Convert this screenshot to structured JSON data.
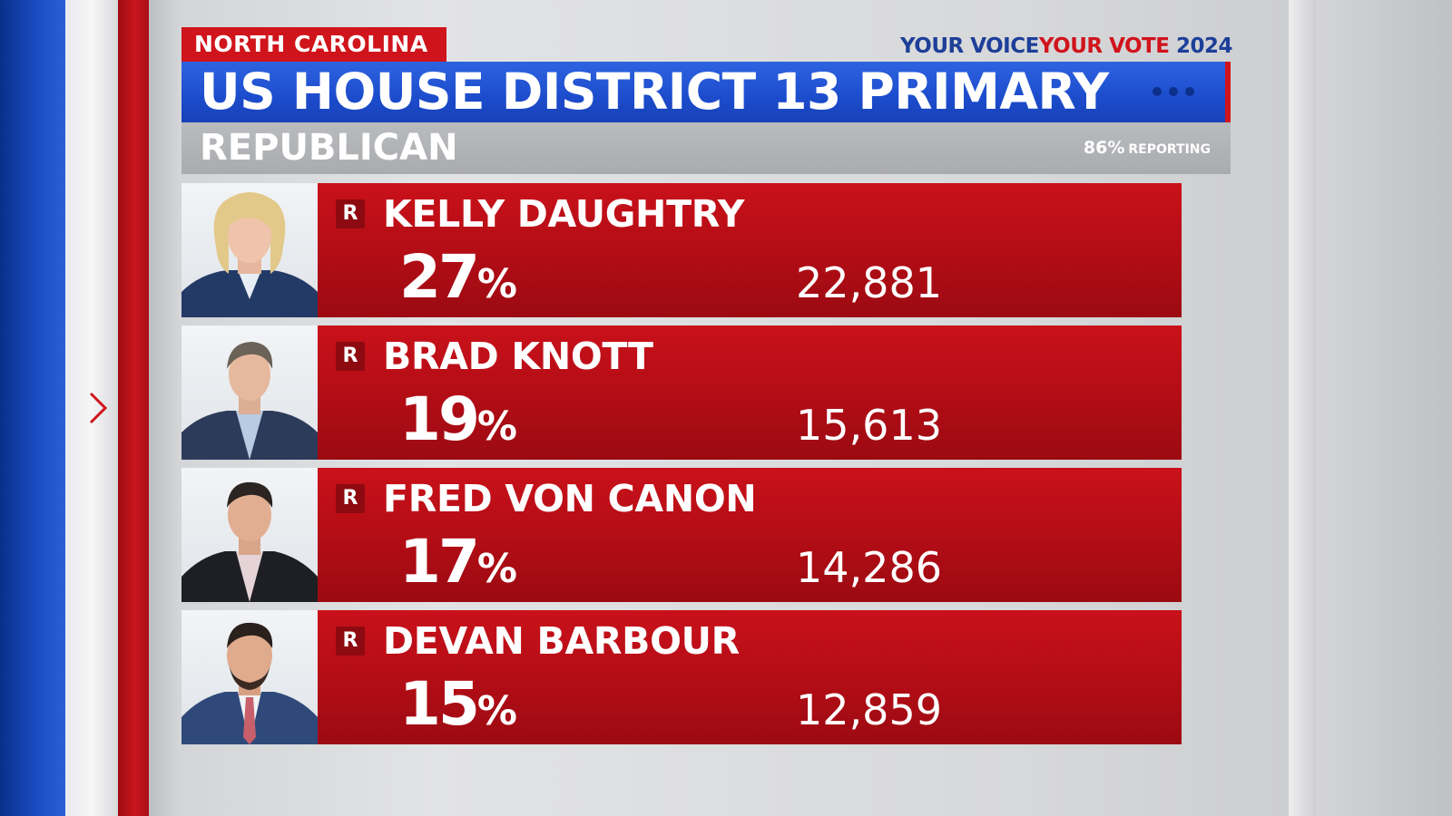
{
  "header": {
    "state": "NORTH CAROLINA",
    "brand_part1": "YOUR VOICE",
    "brand_part2": "YOUR VOTE",
    "brand_part3": " 2024",
    "title": "US HOUSE DISTRICT 13 PRIMARY",
    "party": "REPUBLICAN",
    "reporting_pct": "86%",
    "reporting_label": "REPORTING"
  },
  "candidates": [
    {
      "party": "R",
      "name": "KELLY DAUGHTRY",
      "pct": "27",
      "votes": "22,881"
    },
    {
      "party": "R",
      "name": "BRAD KNOTT",
      "pct": "19",
      "votes": "15,613"
    },
    {
      "party": "R",
      "name": "FRED VON CANON",
      "pct": "17",
      "votes": "14,286"
    },
    {
      "party": "R",
      "name": "DEVAN BARBOUR",
      "pct": "15",
      "votes": "12,859"
    }
  ],
  "percent_sign": "%",
  "colors": {
    "red": "#d0141c",
    "blue": "#1c4ccc",
    "grey": "#a9abae"
  }
}
